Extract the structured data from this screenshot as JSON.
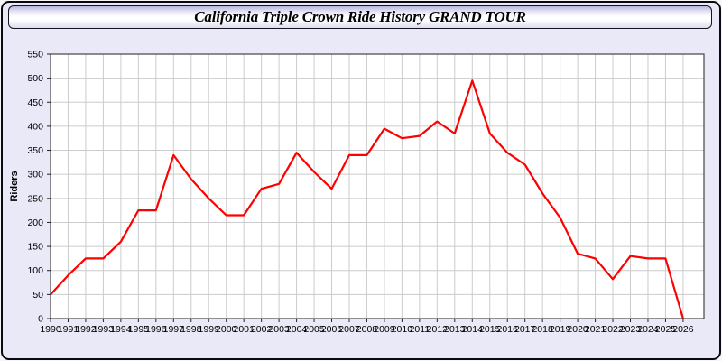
{
  "title_bar": {
    "title": "California Triple Crown Ride History GRAND TOUR"
  },
  "colors": {
    "line": "#ff0000",
    "panel_background": "#e9e9f7",
    "plot_background": "#ffffff",
    "grid": "#cccccc",
    "plot_border": "#444444",
    "tick_text": "#000000"
  },
  "chart_data": {
    "type": "line",
    "title": "California Triple Crown Ride History GRAND TOUR",
    "xlabel": "",
    "ylabel": "Riders",
    "legend_position": "none",
    "grid": "on",
    "ylim": [
      0,
      550
    ],
    "ytick_step": 50,
    "x": [
      1990,
      1991,
      1992,
      1993,
      1994,
      1995,
      1996,
      1997,
      1998,
      1999,
      2000,
      2001,
      2002,
      2003,
      2004,
      2005,
      2006,
      2007,
      2008,
      2009,
      2010,
      2011,
      2012,
      2013,
      2014,
      2015,
      2016,
      2017,
      2018,
      2019,
      2020,
      2021,
      2022,
      2023,
      2024,
      2025,
      2026
    ],
    "series": [
      {
        "name": "Riders",
        "color": "#ff0000",
        "values": [
          50,
          90,
          125,
          125,
          160,
          225,
          225,
          340,
          290,
          250,
          215,
          215,
          270,
          280,
          345,
          305,
          270,
          340,
          340,
          395,
          375,
          380,
          410,
          385,
          495,
          385,
          345,
          320,
          260,
          210,
          135,
          125,
          82,
          130,
          125,
          125,
          0
        ]
      }
    ]
  }
}
